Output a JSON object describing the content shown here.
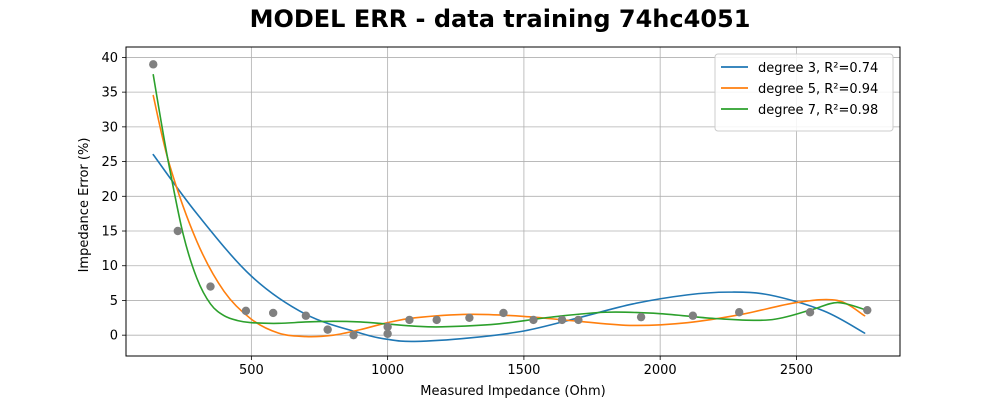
{
  "chart_data": {
    "type": "scatter",
    "title": "MODEL ERR - data training 74hc4051",
    "xlabel": "Measured Impedance (Ohm)",
    "ylabel": "Impedance Error (%)",
    "xlim": [
      40,
      2880
    ],
    "ylim": [
      -3,
      41.5
    ],
    "x_ticks": [
      500,
      1000,
      1500,
      2000,
      2500
    ],
    "y_ticks": [
      0,
      5,
      10,
      15,
      20,
      25,
      30,
      35,
      40
    ],
    "grid": true,
    "legend_position": "top-right",
    "points": {
      "color": "#808080",
      "x": [
        140,
        230,
        350,
        480,
        580,
        700,
        780,
        875,
        1000,
        1000,
        1080,
        1180,
        1300,
        1425,
        1535,
        1640,
        1700,
        1930,
        2120,
        2290,
        2550,
        2760
      ],
      "y": [
        39.0,
        15.0,
        7.0,
        3.5,
        3.2,
        2.8,
        0.8,
        0.0,
        0.2,
        1.2,
        2.2,
        2.2,
        2.5,
        3.2,
        2.2,
        2.2,
        2.2,
        2.6,
        2.8,
        3.3,
        3.3,
        3.6
      ]
    },
    "series": [
      {
        "name": "degree 3, R²=0.74",
        "color": "#1f77b4",
        "x": [
          140,
          300,
          500,
          700,
          900,
          1000,
          1100,
          1300,
          1500,
          1700,
          1900,
          2100,
          2250,
          2400,
          2600,
          2750
        ],
        "y": [
          26.0,
          17.5,
          8.5,
          3.0,
          0.3,
          -0.6,
          -0.9,
          -0.4,
          0.6,
          2.5,
          4.5,
          5.8,
          6.2,
          5.8,
          3.5,
          0.3
        ]
      },
      {
        "name": "degree 5, R²=0.94",
        "color": "#ff7f0e",
        "x": [
          140,
          200,
          300,
          400,
          500,
          600,
          700,
          800,
          900,
          1000,
          1100,
          1300,
          1500,
          1700,
          1900,
          2100,
          2300,
          2500,
          2650,
          2750
        ],
        "y": [
          34.5,
          24.5,
          13.5,
          6.3,
          2.3,
          0.3,
          -0.2,
          0.0,
          0.8,
          1.8,
          2.5,
          3.0,
          2.7,
          2.0,
          1.4,
          1.8,
          3.0,
          4.7,
          5.0,
          2.8
        ]
      },
      {
        "name": "degree 7, R²=0.98",
        "color": "#2ca02c",
        "x": [
          140,
          170,
          200,
          250,
          300,
          350,
          400,
          450,
          500,
          600,
          700,
          800,
          900,
          1000,
          1100,
          1200,
          1400,
          1600,
          1800,
          2000,
          2200,
          2400,
          2550,
          2650,
          2750
        ],
        "y": [
          37.5,
          30.5,
          24.0,
          14.5,
          8.2,
          4.5,
          2.8,
          2.1,
          1.8,
          1.7,
          1.9,
          2.0,
          1.9,
          1.6,
          1.3,
          1.2,
          1.6,
          2.6,
          3.3,
          3.1,
          2.4,
          2.2,
          3.6,
          4.7,
          3.7
        ]
      }
    ]
  }
}
